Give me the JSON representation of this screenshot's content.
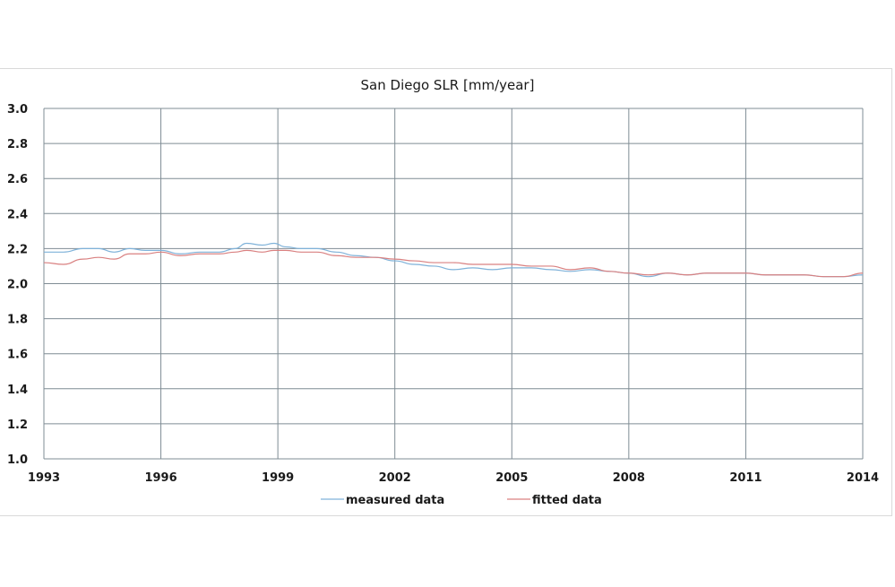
{
  "chart_data": {
    "type": "line",
    "title": "San Diego SLR [mm/year]",
    "xlabel": "",
    "ylabel": "",
    "xlim": [
      1993,
      2014
    ],
    "ylim": [
      1.0,
      3.0
    ],
    "x_ticks": [
      "1993",
      "1996",
      "1999",
      "2002",
      "2005",
      "2008",
      "2011",
      "2014"
    ],
    "y_ticks": [
      "1.0",
      "1.2",
      "1.4",
      "1.6",
      "1.8",
      "2.0",
      "2.2",
      "2.4",
      "2.6",
      "2.8",
      "3.0"
    ],
    "grid": true,
    "legend_position": "bottom",
    "series": [
      {
        "name": "measured data",
        "color": "#7fb2d9",
        "x": [
          1993,
          1993.5,
          1994,
          1994.4,
          1994.8,
          1995.2,
          1995.6,
          1996,
          1996.5,
          1997,
          1997.5,
          1997.9,
          1998.2,
          1998.6,
          1998.9,
          1999.2,
          1999.6,
          2000,
          2000.5,
          2001,
          2001.5,
          2002,
          2002.5,
          2003,
          2003.5,
          2004,
          2004.5,
          2005,
          2005.5,
          2006,
          2006.5,
          2007,
          2007.5,
          2008,
          2008.5,
          2009,
          2009.5,
          2010,
          2010.5,
          2011,
          2011.5,
          2012,
          2012.5,
          2013,
          2013.5,
          2014
        ],
        "values": [
          2.18,
          2.18,
          2.2,
          2.2,
          2.18,
          2.2,
          2.19,
          2.19,
          2.17,
          2.18,
          2.18,
          2.2,
          2.23,
          2.22,
          2.23,
          2.21,
          2.2,
          2.2,
          2.18,
          2.16,
          2.15,
          2.13,
          2.11,
          2.1,
          2.08,
          2.09,
          2.08,
          2.09,
          2.09,
          2.08,
          2.07,
          2.08,
          2.07,
          2.06,
          2.04,
          2.06,
          2.05,
          2.06,
          2.06,
          2.06,
          2.05,
          2.05,
          2.05,
          2.04,
          2.04,
          2.05
        ]
      },
      {
        "name": "fitted data",
        "color": "#d98080",
        "x": [
          1993,
          1993.5,
          1994,
          1994.4,
          1994.8,
          1995.2,
          1995.6,
          1996,
          1996.5,
          1997,
          1997.5,
          1997.9,
          1998.2,
          1998.6,
          1998.9,
          1999.2,
          1999.6,
          2000,
          2000.5,
          2001,
          2001.5,
          2002,
          2002.5,
          2003,
          2003.5,
          2004,
          2004.5,
          2005,
          2005.5,
          2006,
          2006.5,
          2007,
          2007.5,
          2008,
          2008.5,
          2009,
          2009.5,
          2010,
          2010.5,
          2011,
          2011.5,
          2012,
          2012.5,
          2013,
          2013.5,
          2014
        ],
        "values": [
          2.12,
          2.11,
          2.14,
          2.15,
          2.14,
          2.17,
          2.17,
          2.18,
          2.16,
          2.17,
          2.17,
          2.18,
          2.19,
          2.18,
          2.19,
          2.19,
          2.18,
          2.18,
          2.16,
          2.15,
          2.15,
          2.14,
          2.13,
          2.12,
          2.12,
          2.11,
          2.11,
          2.11,
          2.1,
          2.1,
          2.08,
          2.09,
          2.07,
          2.06,
          2.05,
          2.06,
          2.05,
          2.06,
          2.06,
          2.06,
          2.05,
          2.05,
          2.05,
          2.04,
          2.04,
          2.06
        ]
      }
    ]
  },
  "colors": {
    "gridline": "#7f8c94",
    "plot_border": "#7f8c94",
    "frame_border": "#d9d9d9",
    "text": "#1a1a1a"
  },
  "legend": {
    "items": [
      {
        "label": "measured data",
        "color": "#7fb2d9"
      },
      {
        "label": "fitted data",
        "color": "#d98080"
      }
    ]
  }
}
